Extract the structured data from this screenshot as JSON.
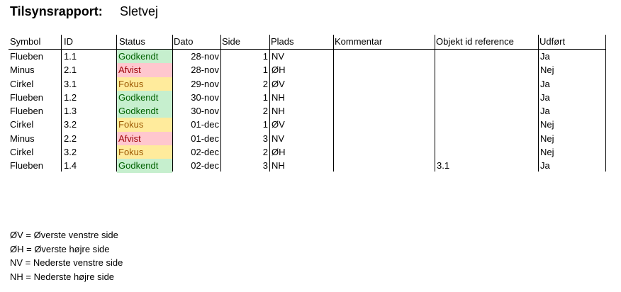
{
  "title": {
    "label": "Tilsynsrapport:",
    "value": "Sletvej"
  },
  "columns": [
    "Symbol",
    "ID",
    "Status",
    "Dato",
    "Side",
    "Plads",
    "Kommentar",
    "Objekt id reference",
    "Udført"
  ],
  "rows": [
    {
      "symbol": "Flueben",
      "id": "1.1",
      "status": "Godkendt",
      "status_kind": "godkendt",
      "dato": "28-nov",
      "side": "1",
      "plads": "NV",
      "kommentar": "",
      "objekt": "",
      "udfort": "Ja"
    },
    {
      "symbol": "Minus",
      "id": "2.1",
      "status": "Afvist",
      "status_kind": "afvist",
      "dato": "28-nov",
      "side": "1",
      "plads": "ØH",
      "kommentar": "",
      "objekt": "",
      "udfort": "Nej"
    },
    {
      "symbol": "Cirkel",
      "id": "3.1",
      "status": "Fokus",
      "status_kind": "fokus",
      "dato": "29-nov",
      "side": "2",
      "plads": "ØV",
      "kommentar": "",
      "objekt": "",
      "udfort": "Ja"
    },
    {
      "symbol": "Flueben",
      "id": "1.2",
      "status": "Godkendt",
      "status_kind": "godkendt",
      "dato": "30-nov",
      "side": "1",
      "plads": "NH",
      "kommentar": "",
      "objekt": "",
      "udfort": "Ja"
    },
    {
      "symbol": "Flueben",
      "id": "1.3",
      "status": "Godkendt",
      "status_kind": "godkendt",
      "dato": "30-nov",
      "side": "2",
      "plads": "NH",
      "kommentar": "",
      "objekt": "",
      "udfort": "Ja"
    },
    {
      "symbol": "Cirkel",
      "id": "3.2",
      "status": "Fokus",
      "status_kind": "fokus",
      "dato": "01-dec",
      "side": "1",
      "plads": "ØV",
      "kommentar": "",
      "objekt": "",
      "udfort": "Nej"
    },
    {
      "symbol": "Minus",
      "id": "2.2",
      "status": "Afvist",
      "status_kind": "afvist",
      "dato": "01-dec",
      "side": "3",
      "plads": "NV",
      "kommentar": "",
      "objekt": "",
      "udfort": "Nej"
    },
    {
      "symbol": "Cirkel",
      "id": "3.2",
      "status": "Fokus",
      "status_kind": "fokus",
      "dato": "02-dec",
      "side": "2",
      "plads": "ØH",
      "kommentar": "",
      "objekt": "",
      "udfort": "Nej"
    },
    {
      "symbol": "Flueben",
      "id": "1.4",
      "status": "Godkendt",
      "status_kind": "godkendt",
      "dato": "02-dec",
      "side": "3",
      "plads": "NH",
      "kommentar": "",
      "objekt": "3.1",
      "udfort": "Ja"
    }
  ],
  "legend": [
    "ØV = Øverste venstre side",
    "ØH = Øverste højre side",
    "NV = Nederste venstre side",
    "NH = Nederste højre side"
  ],
  "status_colors": {
    "godkendt": {
      "bg": "#c6efce",
      "fg": "#006100"
    },
    "afvist": {
      "bg": "#ffc7ce",
      "fg": "#9c0006"
    },
    "fokus": {
      "bg": "#ffeb9c",
      "fg": "#9c5700"
    }
  }
}
